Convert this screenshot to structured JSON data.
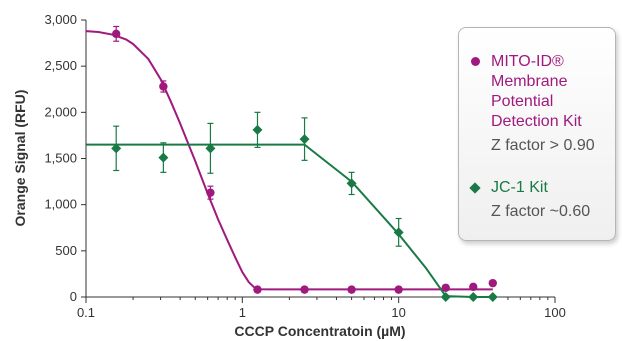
{
  "chart_data": {
    "type": "line",
    "xscale": "log",
    "xlabel": "CCCP Concentratoin (µM)",
    "ylabel": "Orange Signal (RFU)",
    "xlim": [
      0.1,
      100
    ],
    "ylim": [
      0,
      3000
    ],
    "xticks": [
      0.1,
      1,
      10,
      100
    ],
    "xtick_labels": [
      "0.1",
      "1",
      "10",
      "100"
    ],
    "yticks": [
      0,
      500,
      1000,
      1500,
      2000,
      2500,
      3000
    ],
    "ytick_labels": [
      "0",
      "500",
      "1,000",
      "1,500",
      "2,000",
      "2,500",
      "3,000"
    ],
    "grid": false,
    "legend_position": "right",
    "series": [
      {
        "name": "MITO-ID® Membrane Potential Detection Kit",
        "note": "Z factor > 0.90",
        "color": "#a0197e",
        "marker": "circle",
        "x": [
          0.156,
          0.3125,
          0.625,
          1.25,
          2.5,
          5,
          10,
          20,
          30,
          40
        ],
        "y": [
          2850,
          2280,
          1130,
          80,
          80,
          80,
          80,
          100,
          110,
          150
        ],
        "err": [
          80,
          60,
          70,
          0,
          0,
          0,
          0,
          0,
          0,
          0
        ],
        "fit_x": [
          0.1,
          0.12,
          0.15,
          0.18,
          0.2,
          0.25,
          0.3,
          0.35,
          0.4,
          0.5,
          0.6,
          0.7,
          0.8,
          0.9,
          1.0,
          1.1,
          1.2,
          1.3,
          1.5,
          2.5,
          5,
          10,
          20,
          40
        ],
        "fit_y": [
          2880,
          2870,
          2840,
          2790,
          2740,
          2580,
          2360,
          2110,
          1880,
          1470,
          1120,
          840,
          620,
          430,
          270,
          160,
          100,
          85,
          82,
          82,
          82,
          82,
          82,
          82
        ]
      },
      {
        "name": "JC-1 Kit",
        "note": "Z factor ~0.60",
        "color": "#1a7a45",
        "marker": "diamond",
        "x": [
          0.156,
          0.3125,
          0.625,
          1.25,
          2.5,
          5,
          10,
          20,
          30,
          40
        ],
        "y": [
          1610,
          1510,
          1610,
          1810,
          1710,
          1230,
          700,
          0,
          0,
          0
        ],
        "err": [
          240,
          160,
          270,
          190,
          230,
          120,
          150,
          0,
          0,
          0
        ],
        "fit_x": [
          0.1,
          2.5,
          5,
          10,
          15,
          20,
          30,
          40
        ],
        "fit_y": [
          1650,
          1650,
          1250,
          680,
          310,
          10,
          0,
          0
        ]
      }
    ]
  }
}
